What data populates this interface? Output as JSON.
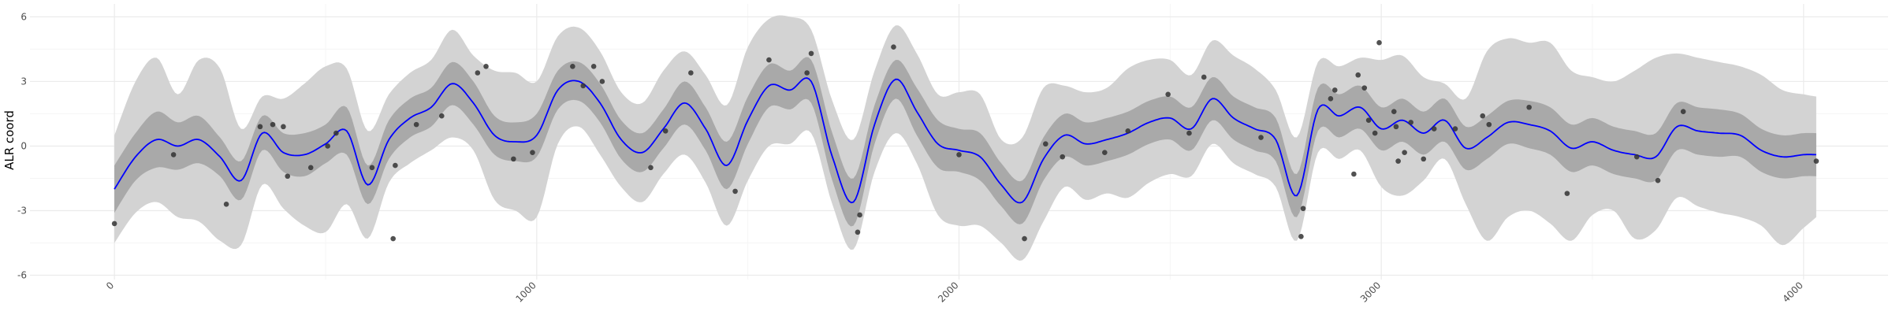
{
  "chart_data": {
    "type": "line",
    "title": "",
    "xlabel": "",
    "ylabel": "ALR coord",
    "xlim": [
      -200,
      4200
    ],
    "ylim": [
      -6.2,
      6.6
    ],
    "grid": true,
    "legend": "none",
    "x_ticks": [
      0,
      1000,
      2000,
      3000,
      4000
    ],
    "x_tick_labels": [
      "0",
      "1000",
      "2000",
      "3000",
      "4000"
    ],
    "y_ticks": [
      -6,
      -3,
      0,
      3,
      6
    ],
    "y_tick_labels": [
      "-6",
      "-3",
      "0",
      "3",
      "6"
    ],
    "colors": {
      "mean_line": "#0000ff",
      "inner_band": "#a9a9a9",
      "outer_band": "#d3d3d3",
      "points": "#333333",
      "grid_major": "#ebebeb",
      "grid_minor": "#f5f5f5"
    },
    "series": [
      {
        "kind": "mean",
        "x": [
          0,
          50,
          100,
          150,
          200,
          250,
          300,
          350,
          400,
          450,
          500,
          550,
          600,
          650,
          700,
          750,
          800,
          850,
          900,
          950,
          1000,
          1050,
          1100,
          1150,
          1200,
          1250,
          1300,
          1350,
          1400,
          1450,
          1500,
          1550,
          1600,
          1650,
          1700,
          1750,
          1800,
          1850,
          1900,
          1950,
          2000,
          2050,
          2100,
          2150,
          2200,
          2250,
          2300,
          2350,
          2400,
          2450,
          2500,
          2550,
          2600,
          2650,
          2700,
          2750,
          2800,
          2850,
          2900,
          2950,
          3000,
          3050,
          3100,
          3150,
          3200,
          3250,
          3300,
          3350,
          3400,
          3450,
          3500,
          3550,
          3600,
          3650,
          3700,
          3750,
          3800,
          3850,
          3900,
          3950,
          4000,
          4030
        ],
        "y": [
          -2.0,
          -0.5,
          0.3,
          0.0,
          0.3,
          -0.5,
          -1.6,
          0.6,
          -0.3,
          -0.4,
          0.1,
          0.7,
          -1.8,
          0.3,
          1.3,
          1.8,
          2.9,
          2.0,
          0.5,
          0.2,
          0.5,
          2.6,
          3.0,
          2.0,
          0.3,
          -0.3,
          0.8,
          2.0,
          0.8,
          -0.9,
          1.2,
          2.8,
          2.6,
          3.0,
          -0.5,
          -2.6,
          1.0,
          3.1,
          1.6,
          0.1,
          -0.2,
          -0.5,
          -1.8,
          -2.6,
          -0.6,
          0.5,
          0.1,
          0.3,
          0.6,
          1.1,
          1.3,
          0.8,
          2.2,
          1.3,
          0.8,
          0.3,
          -2.3,
          1.7,
          1.4,
          1.8,
          0.8,
          1.2,
          0.6,
          1.2,
          -0.1,
          0.4,
          1.1,
          1.0,
          0.7,
          -0.1,
          0.2,
          -0.2,
          -0.4,
          -0.5,
          0.9,
          0.7,
          0.6,
          0.5,
          -0.2,
          -0.5,
          -0.4,
          -0.4
        ]
      },
      {
        "kind": "inner_band",
        "x": [
          0,
          50,
          100,
          150,
          200,
          250,
          300,
          350,
          400,
          450,
          500,
          550,
          600,
          650,
          700,
          750,
          800,
          850,
          900,
          950,
          1000,
          1050,
          1100,
          1150,
          1200,
          1250,
          1300,
          1350,
          1400,
          1450,
          1500,
          1550,
          1600,
          1650,
          1700,
          1750,
          1800,
          1850,
          1900,
          1950,
          2000,
          2050,
          2100,
          2150,
          2200,
          2250,
          2300,
          2350,
          2400,
          2450,
          2500,
          2550,
          2600,
          2650,
          2700,
          2750,
          2800,
          2850,
          2900,
          2950,
          3000,
          3050,
          3100,
          3150,
          3200,
          3250,
          3300,
          3350,
          3400,
          3450,
          3500,
          3550,
          3600,
          3650,
          3700,
          3750,
          3800,
          3850,
          3900,
          3950,
          4000,
          4030
        ],
        "upper": [
          -0.9,
          0.6,
          1.6,
          1.1,
          1.4,
          0.4,
          -0.7,
          1.4,
          0.6,
          0.6,
          1.0,
          1.8,
          -0.9,
          1.2,
          2.2,
          2.7,
          3.9,
          3.0,
          1.4,
          1.1,
          1.5,
          3.5,
          3.9,
          2.9,
          1.2,
          0.6,
          1.7,
          3.0,
          1.8,
          0.2,
          2.3,
          3.8,
          3.5,
          4.0,
          0.6,
          -1.5,
          1.9,
          4.0,
          2.7,
          1.2,
          0.8,
          0.6,
          -0.8,
          -1.6,
          0.4,
          1.5,
          1.1,
          1.3,
          1.6,
          2.1,
          2.3,
          1.8,
          3.2,
          2.3,
          1.8,
          1.3,
          -1.3,
          2.7,
          2.4,
          2.8,
          1.8,
          2.2,
          1.6,
          2.2,
          0.9,
          1.4,
          2.1,
          2.1,
          1.8,
          1.0,
          1.3,
          0.9,
          0.7,
          0.6,
          2.0,
          1.8,
          1.7,
          1.5,
          0.8,
          0.5,
          0.6,
          0.6
        ],
        "lower": [
          -3.1,
          -1.6,
          -1.0,
          -1.1,
          -0.8,
          -1.4,
          -2.5,
          -0.2,
          -1.2,
          -1.4,
          -0.8,
          -0.4,
          -2.7,
          -0.6,
          0.4,
          0.9,
          1.9,
          1.0,
          -0.4,
          -0.7,
          -0.5,
          1.7,
          2.1,
          1.1,
          -0.6,
          -1.2,
          -0.1,
          1.0,
          -0.2,
          -2.0,
          0.1,
          1.8,
          1.7,
          2.0,
          -1.6,
          -3.7,
          0.1,
          2.2,
          0.5,
          -1.0,
          -1.2,
          -1.6,
          -2.8,
          -3.6,
          -1.6,
          -0.5,
          -0.9,
          -0.7,
          -0.4,
          0.1,
          0.3,
          -0.2,
          1.2,
          0.3,
          -0.2,
          -0.7,
          -3.3,
          0.7,
          0.4,
          0.8,
          -0.2,
          0.2,
          -0.4,
          0.2,
          -1.1,
          -0.6,
          0.1,
          -0.1,
          -0.4,
          -1.2,
          -0.9,
          -1.3,
          -1.5,
          -1.6,
          -0.2,
          -0.4,
          -0.5,
          -0.5,
          -1.2,
          -1.5,
          -1.4,
          -1.4
        ]
      },
      {
        "kind": "outer_band",
        "x": [
          0,
          50,
          100,
          150,
          200,
          250,
          300,
          350,
          400,
          450,
          500,
          550,
          600,
          650,
          700,
          750,
          800,
          850,
          900,
          950,
          1000,
          1050,
          1100,
          1150,
          1200,
          1250,
          1300,
          1350,
          1400,
          1450,
          1500,
          1550,
          1600,
          1650,
          1700,
          1750,
          1800,
          1850,
          1900,
          1950,
          2000,
          2050,
          2100,
          2150,
          2200,
          2250,
          2300,
          2350,
          2400,
          2450,
          2500,
          2550,
          2600,
          2650,
          2700,
          2750,
          2800,
          2850,
          2900,
          2950,
          3000,
          3050,
          3100,
          3150,
          3200,
          3250,
          3300,
          3350,
          3400,
          3450,
          3500,
          3550,
          3600,
          3650,
          3700,
          3750,
          3800,
          3850,
          3900,
          3950,
          4000,
          4030
        ],
        "upper": [
          0.5,
          3.0,
          4.1,
          2.4,
          4.0,
          3.6,
          0.8,
          2.3,
          2.2,
          2.9,
          3.7,
          3.6,
          0.7,
          2.4,
          3.4,
          4.0,
          5.4,
          4.2,
          3.5,
          3.4,
          3.0,
          5.1,
          5.5,
          4.4,
          2.5,
          2.0,
          3.5,
          4.4,
          3.3,
          1.9,
          4.6,
          5.9,
          6.0,
          5.4,
          2.1,
          0.3,
          3.5,
          5.6,
          4.3,
          2.4,
          2.5,
          2.4,
          0.3,
          0.4,
          2.7,
          2.8,
          2.5,
          2.7,
          3.6,
          4.0,
          4.0,
          3.3,
          4.9,
          4.2,
          3.6,
          2.6,
          0.4,
          3.9,
          3.7,
          4.1,
          4.0,
          4.2,
          3.2,
          2.9,
          2.2,
          4.4,
          5.0,
          4.8,
          4.8,
          3.5,
          3.2,
          3.0,
          3.5,
          4.1,
          4.3,
          4.1,
          3.9,
          3.7,
          3.3,
          2.6,
          2.4,
          2.3
        ],
        "lower": [
          -4.5,
          -3.1,
          -2.6,
          -3.3,
          -3.5,
          -4.4,
          -4.6,
          -1.8,
          -2.9,
          -3.7,
          -4.0,
          -2.7,
          -4.3,
          -1.7,
          -0.8,
          -0.2,
          0.4,
          -0.2,
          -2.5,
          -3.0,
          -3.3,
          0.1,
          0.9,
          -0.4,
          -1.9,
          -2.6,
          -1.3,
          -0.4,
          -1.7,
          -3.7,
          -1.6,
          0.0,
          0.1,
          0.6,
          -2.7,
          -4.8,
          -1.2,
          0.6,
          -0.8,
          -3.2,
          -3.7,
          -3.7,
          -4.5,
          -5.3,
          -3.5,
          -1.9,
          -2.5,
          -2.2,
          -2.4,
          -1.7,
          -1.3,
          -1.4,
          0.1,
          -0.8,
          -1.3,
          -1.9,
          -4.4,
          -0.3,
          -0.6,
          -0.2,
          -1.9,
          -2.3,
          -1.6,
          -0.6,
          -2.7,
          -4.4,
          -3.3,
          -3.0,
          -3.6,
          -4.4,
          -3.2,
          -3.0,
          -4.3,
          -3.9,
          -2.4,
          -2.8,
          -3.1,
          -3.3,
          -3.7,
          -4.6,
          -3.8,
          -3.3
        ]
      },
      {
        "kind": "points",
        "x": [
          0,
          140,
          265,
          345,
          375,
          400,
          410,
          465,
          505,
          525,
          610,
          660,
          665,
          715,
          775,
          860,
          880,
          945,
          990,
          1085,
          1110,
          1135,
          1155,
          1270,
          1305,
          1365,
          1470,
          1550,
          1640,
          1650,
          1760,
          1765,
          1845,
          2000,
          2155,
          2205,
          2245,
          2345,
          2400,
          2495,
          2545,
          2580,
          2715,
          2810,
          2815,
          2880,
          2890,
          2935,
          2945,
          2960,
          2970,
          2985,
          2995,
          3030,
          3035,
          3040,
          3055,
          3070,
          3100,
          3125,
          3175,
          3240,
          3255,
          3350,
          3440,
          3605,
          3655,
          3715,
          4030
        ],
        "y": [
          -3.6,
          -0.4,
          -2.7,
          0.9,
          1.0,
          0.9,
          -1.4,
          -1.0,
          0.0,
          0.6,
          -1.0,
          -4.3,
          -0.9,
          1.0,
          1.4,
          3.4,
          3.7,
          -0.6,
          -0.3,
          3.7,
          2.8,
          3.7,
          3.0,
          -1.0,
          0.7,
          3.4,
          -2.1,
          4.0,
          3.4,
          4.3,
          -4.0,
          -3.2,
          4.6,
          -0.4,
          -4.3,
          0.1,
          -0.5,
          -0.3,
          0.7,
          2.4,
          0.6,
          3.2,
          0.4,
          -4.2,
          -2.9,
          2.2,
          2.6,
          -1.3,
          3.3,
          2.7,
          1.2,
          0.6,
          4.8,
          1.6,
          0.9,
          -0.7,
          -0.3,
          1.1,
          -0.6,
          0.8,
          0.8,
          1.4,
          1.0,
          1.8,
          -2.2,
          -0.5,
          -1.6,
          1.6,
          -0.7
        ]
      }
    ]
  }
}
